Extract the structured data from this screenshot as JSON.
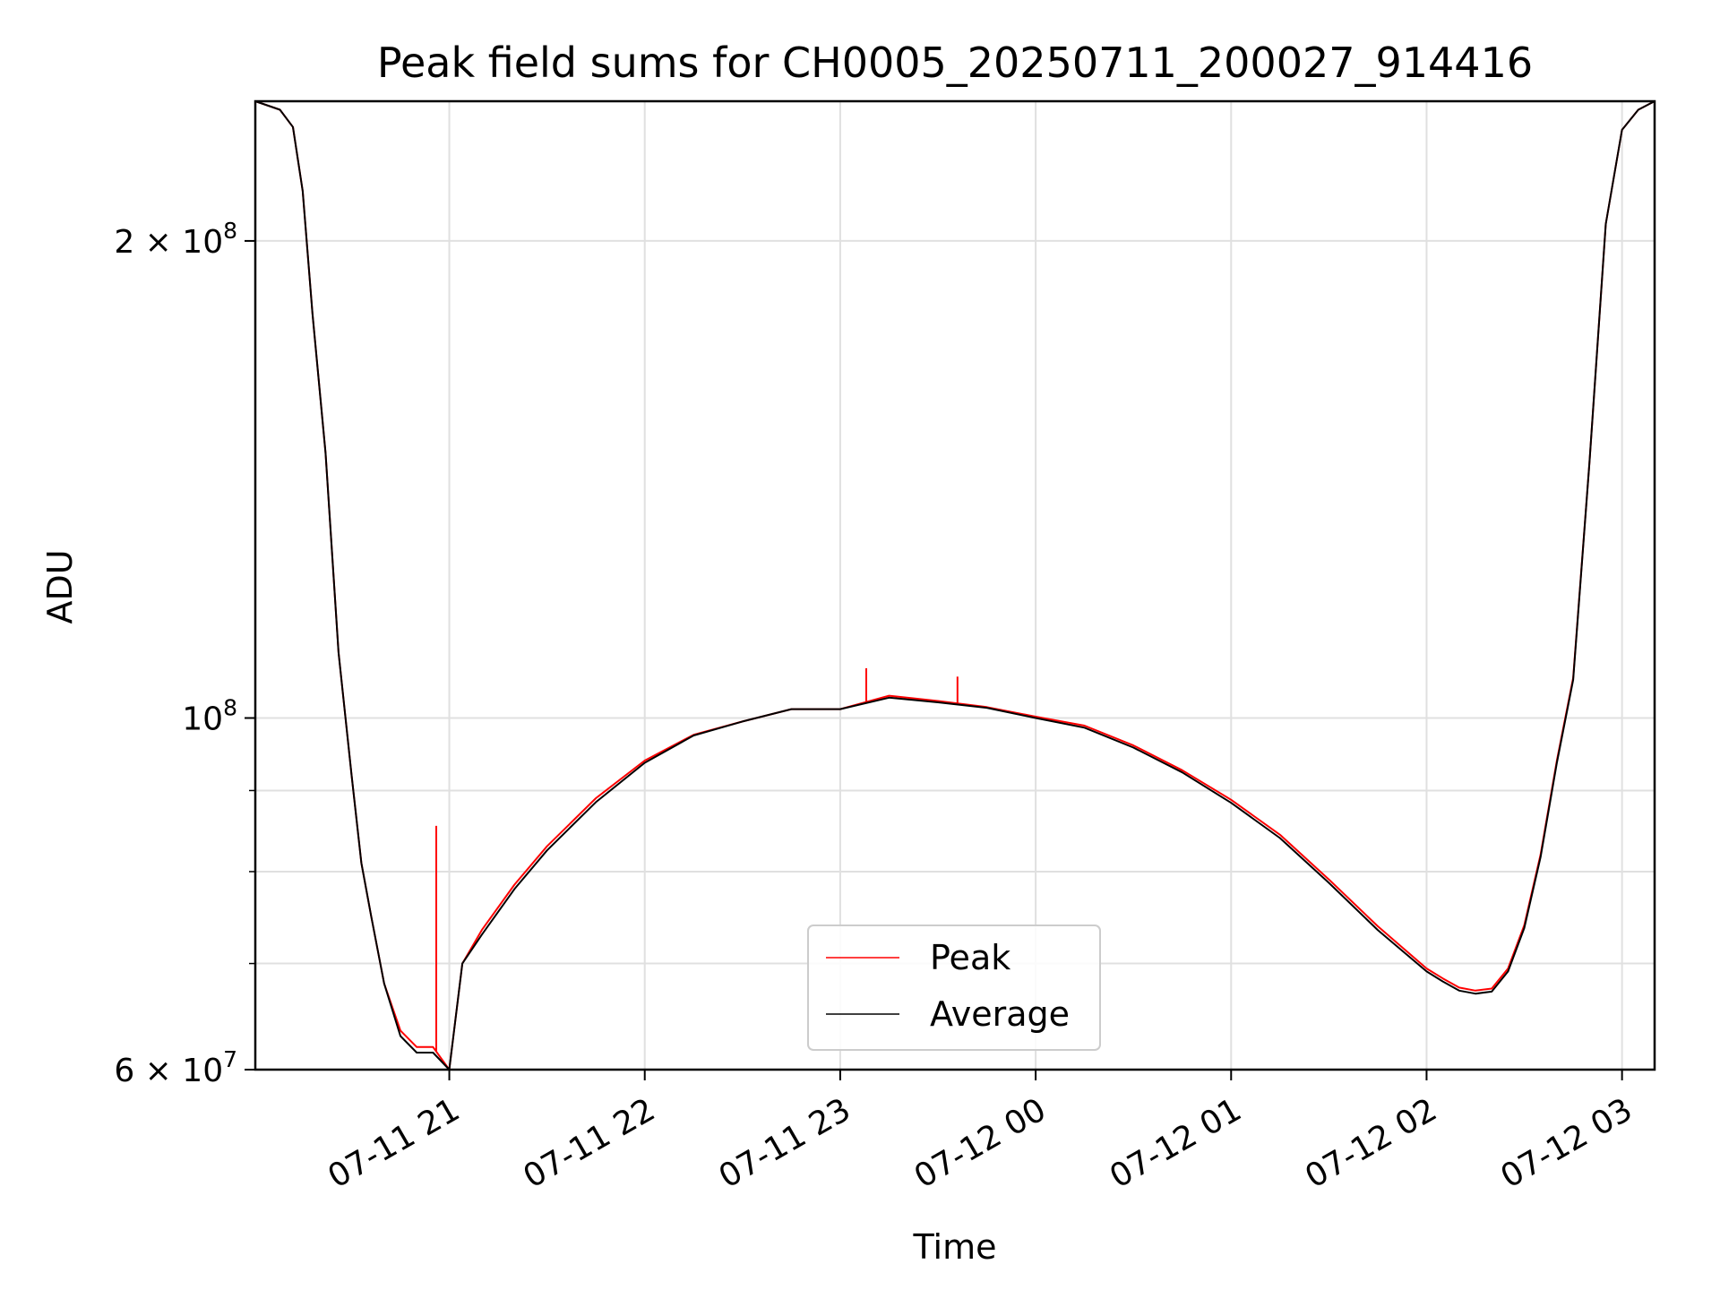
{
  "chart_data": {
    "type": "line",
    "title": "Peak field sums for CH0005_20250711_200027_914416",
    "xlabel": "Time",
    "ylabel": "ADU",
    "y_scale": "log",
    "ylim": [
      60000000,
      245000000
    ],
    "xlim": [
      "2025-07-11 20:00:27",
      "2025-07-12 03:10:00"
    ],
    "grid": true,
    "legend_position": "lower center",
    "x_ticks": [
      {
        "value": "2025-07-11 21:00",
        "label": "07-11 21"
      },
      {
        "value": "2025-07-11 22:00",
        "label": "07-11 22"
      },
      {
        "value": "2025-07-11 23:00",
        "label": "07-11 23"
      },
      {
        "value": "2025-07-12 00:00",
        "label": "07-12 00"
      },
      {
        "value": "2025-07-12 01:00",
        "label": "07-12 01"
      },
      {
        "value": "2025-07-12 02:00",
        "label": "07-12 02"
      },
      {
        "value": "2025-07-12 03:00",
        "label": "07-12 03"
      }
    ],
    "y_major_ticks": [
      {
        "value": 60000000,
        "mantissa": "6",
        "exponent": "7"
      },
      {
        "value": 100000000,
        "mantissa": "",
        "exponent": "8"
      },
      {
        "value": 200000000,
        "mantissa": "2",
        "exponent": "8"
      }
    ],
    "y_minor_ticks": [
      70000000,
      80000000,
      90000000
    ],
    "x": [
      "2025-07-11 20:00:27",
      "2025-07-11 20:08",
      "2025-07-11 20:12",
      "2025-07-11 20:15",
      "2025-07-11 20:18",
      "2025-07-11 20:22",
      "2025-07-11 20:26",
      "2025-07-11 20:30",
      "2025-07-11 20:33",
      "2025-07-11 20:36",
      "2025-07-11 20:40",
      "2025-07-11 20:45",
      "2025-07-11 20:50",
      "2025-07-11 20:55",
      "2025-07-11 21:00",
      "2025-07-11 21:04",
      "2025-07-11 21:10",
      "2025-07-11 21:20",
      "2025-07-11 21:30",
      "2025-07-11 21:45",
      "2025-07-11 22:00",
      "2025-07-11 22:15",
      "2025-07-11 22:30",
      "2025-07-11 22:45",
      "2025-07-11 23:00",
      "2025-07-11 23:15",
      "2025-07-11 23:30",
      "2025-07-11 23:45",
      "2025-07-12 00:00",
      "2025-07-12 00:15",
      "2025-07-12 00:30",
      "2025-07-12 00:45",
      "2025-07-12 01:00",
      "2025-07-12 01:15",
      "2025-07-12 01:30",
      "2025-07-12 01:45",
      "2025-07-12 02:00",
      "2025-07-12 02:05",
      "2025-07-12 02:10",
      "2025-07-12 02:15",
      "2025-07-12 02:20",
      "2025-07-12 02:25",
      "2025-07-12 02:30",
      "2025-07-12 02:35",
      "2025-07-12 02:40",
      "2025-07-12 02:45",
      "2025-07-12 02:50",
      "2025-07-12 02:55",
      "2025-07-12 03:00",
      "2025-07-12 03:05",
      "2025-07-12 03:10"
    ],
    "series": [
      {
        "name": "Peak",
        "color": "#ff0000",
        "values": [
          245000000,
          242000000,
          236000000,
          215000000,
          180000000,
          147000000,
          110000000,
          92000000,
          81000000,
          75000000,
          68000000,
          63500000,
          62000000,
          62000000,
          60000000,
          70000000,
          73500000,
          78500000,
          83000000,
          89000000,
          94000000,
          97600000,
          99500000,
          101300000,
          101300000,
          103300000,
          102500000,
          101600000,
          100200000,
          98900000,
          96100000,
          92700000,
          88800000,
          84400000,
          79100000,
          73900000,
          69500000,
          68500000,
          67600000,
          67300000,
          67500000,
          69500000,
          74000000,
          82000000,
          94000000,
          106000000,
          145000000,
          205000000,
          235000000,
          242000000,
          245000000
        ],
        "spikes": [
          {
            "x": "2025-07-11 20:56",
            "y": 85500000
          },
          {
            "x": "2025-07-11 23:08",
            "y": 107500000
          },
          {
            "x": "2025-07-11 23:36",
            "y": 106200000
          }
        ]
      },
      {
        "name": "Average",
        "color": "#000000",
        "values": [
          245000000,
          242000000,
          236000000,
          215000000,
          180000000,
          147000000,
          110000000,
          92000000,
          81000000,
          75000000,
          68000000,
          63000000,
          61500000,
          61500000,
          60000000,
          70000000,
          73000000,
          78000000,
          82500000,
          88500000,
          93700000,
          97500000,
          99500000,
          101300000,
          101300000,
          103000000,
          102300000,
          101500000,
          100000000,
          98600000,
          95800000,
          92400000,
          88400000,
          84000000,
          78700000,
          73500000,
          69200000,
          68200000,
          67300000,
          67000000,
          67200000,
          69200000,
          73700000,
          81700000,
          93700000,
          105700000,
          145000000,
          205000000,
          235000000,
          242000000,
          245000000
        ]
      }
    ]
  }
}
